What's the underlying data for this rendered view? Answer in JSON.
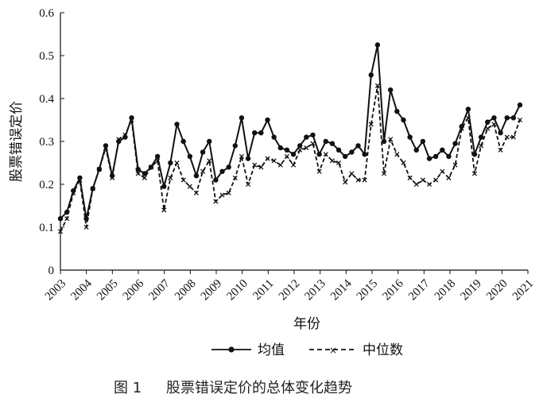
{
  "caption": {
    "figure_no": "图 1",
    "title": "股票错误定价的总体变化趋势"
  },
  "chart_data": {
    "type": "line",
    "xlabel": "年份",
    "ylabel": "股票错误定价",
    "ylim": [
      0,
      0.6
    ],
    "yticks": [
      "0",
      "0.1",
      "0.2",
      "0.3",
      "0.4",
      "0.5",
      "0.6"
    ],
    "xticks": [
      "2003",
      "2004",
      "2005",
      "2006",
      "2007",
      "2008",
      "2009",
      "2010",
      "2011",
      "2012",
      "2013",
      "2014",
      "2015",
      "2016",
      "2017",
      "2018",
      "2019",
      "2020",
      "2021"
    ],
    "legend_position": "bottom",
    "grid": false,
    "series": [
      {
        "name": "均值",
        "style": "solid-dot",
        "color": "#111111",
        "values": [
          0.12,
          0.135,
          0.185,
          0.215,
          0.12,
          0.19,
          0.235,
          0.29,
          0.22,
          0.3,
          0.31,
          0.355,
          0.235,
          0.225,
          0.24,
          0.265,
          0.195,
          0.25,
          0.34,
          0.3,
          0.265,
          0.22,
          0.275,
          0.3,
          0.21,
          0.23,
          0.24,
          0.29,
          0.355,
          0.26,
          0.32,
          0.32,
          0.35,
          0.31,
          0.285,
          0.28,
          0.27,
          0.29,
          0.31,
          0.315,
          0.27,
          0.3,
          0.295,
          0.28,
          0.265,
          0.275,
          0.29,
          0.27,
          0.455,
          0.525,
          0.3,
          0.42,
          0.37,
          0.35,
          0.31,
          0.28,
          0.3,
          0.26,
          0.265,
          0.28,
          0.265,
          0.295,
          0.335,
          0.375,
          0.27,
          0.31,
          0.345,
          0.355,
          0.32,
          0.355,
          0.355,
          0.385
        ]
      },
      {
        "name": "中位数",
        "style": "dashed-x",
        "color": "#111111",
        "values": [
          0.09,
          0.12,
          0.18,
          0.21,
          0.1,
          0.19,
          0.235,
          0.285,
          0.215,
          0.305,
          0.315,
          0.35,
          0.225,
          0.215,
          0.24,
          0.255,
          0.14,
          0.215,
          0.25,
          0.21,
          0.195,
          0.18,
          0.23,
          0.255,
          0.16,
          0.175,
          0.18,
          0.215,
          0.265,
          0.2,
          0.245,
          0.24,
          0.26,
          0.255,
          0.245,
          0.265,
          0.245,
          0.28,
          0.285,
          0.295,
          0.23,
          0.27,
          0.255,
          0.25,
          0.205,
          0.225,
          0.21,
          0.21,
          0.34,
          0.43,
          0.225,
          0.305,
          0.27,
          0.25,
          0.215,
          0.2,
          0.21,
          0.2,
          0.21,
          0.23,
          0.215,
          0.245,
          0.33,
          0.355,
          0.225,
          0.29,
          0.33,
          0.34,
          0.28,
          0.31,
          0.31,
          0.35
        ]
      }
    ]
  }
}
